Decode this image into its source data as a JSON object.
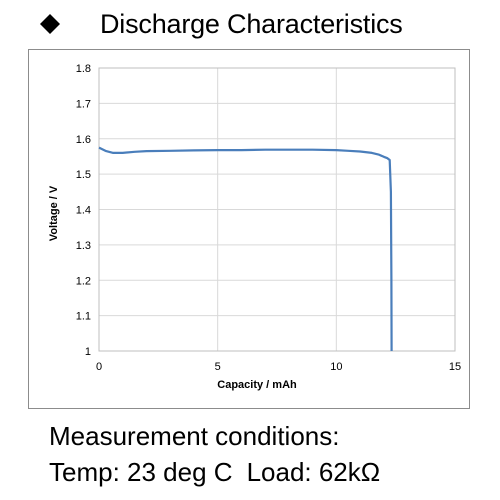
{
  "header": {
    "bullet_icon": "diamond-bullet-icon",
    "title": "Discharge Characteristics"
  },
  "chart_data": {
    "type": "line",
    "title": "",
    "xlabel": "Capacity  /  mAh",
    "ylabel": "Voltage  /  V",
    "xlim": [
      0,
      15
    ],
    "ylim": [
      1,
      1.8
    ],
    "x_ticks": [
      "0",
      "5",
      "10",
      "15"
    ],
    "y_ticks": [
      "1",
      "1.1",
      "1.2",
      "1.3",
      "1.4",
      "1.5",
      "1.6",
      "1.7",
      "1.8"
    ],
    "grid": true,
    "line_color": "#4a7ebb",
    "series": [
      {
        "x": [
          0,
          0.3,
          0.6,
          1.0,
          1.5,
          2,
          3,
          4,
          5,
          6,
          7,
          8,
          9,
          10,
          10.5,
          11,
          11.5,
          11.8,
          12.0,
          12.15,
          12.25,
          12.3,
          12.32,
          12.33
        ],
        "y": [
          1.575,
          1.565,
          1.56,
          1.56,
          1.563,
          1.565,
          1.566,
          1.567,
          1.568,
          1.568,
          1.569,
          1.569,
          1.569,
          1.568,
          1.566,
          1.564,
          1.56,
          1.555,
          1.549,
          1.545,
          1.54,
          1.45,
          1.2,
          1.0
        ]
      }
    ]
  },
  "conditions": {
    "line1": "Measurement conditions:",
    "temp": "Temp: 23 deg C",
    "load": "Load: 62kΩ"
  }
}
